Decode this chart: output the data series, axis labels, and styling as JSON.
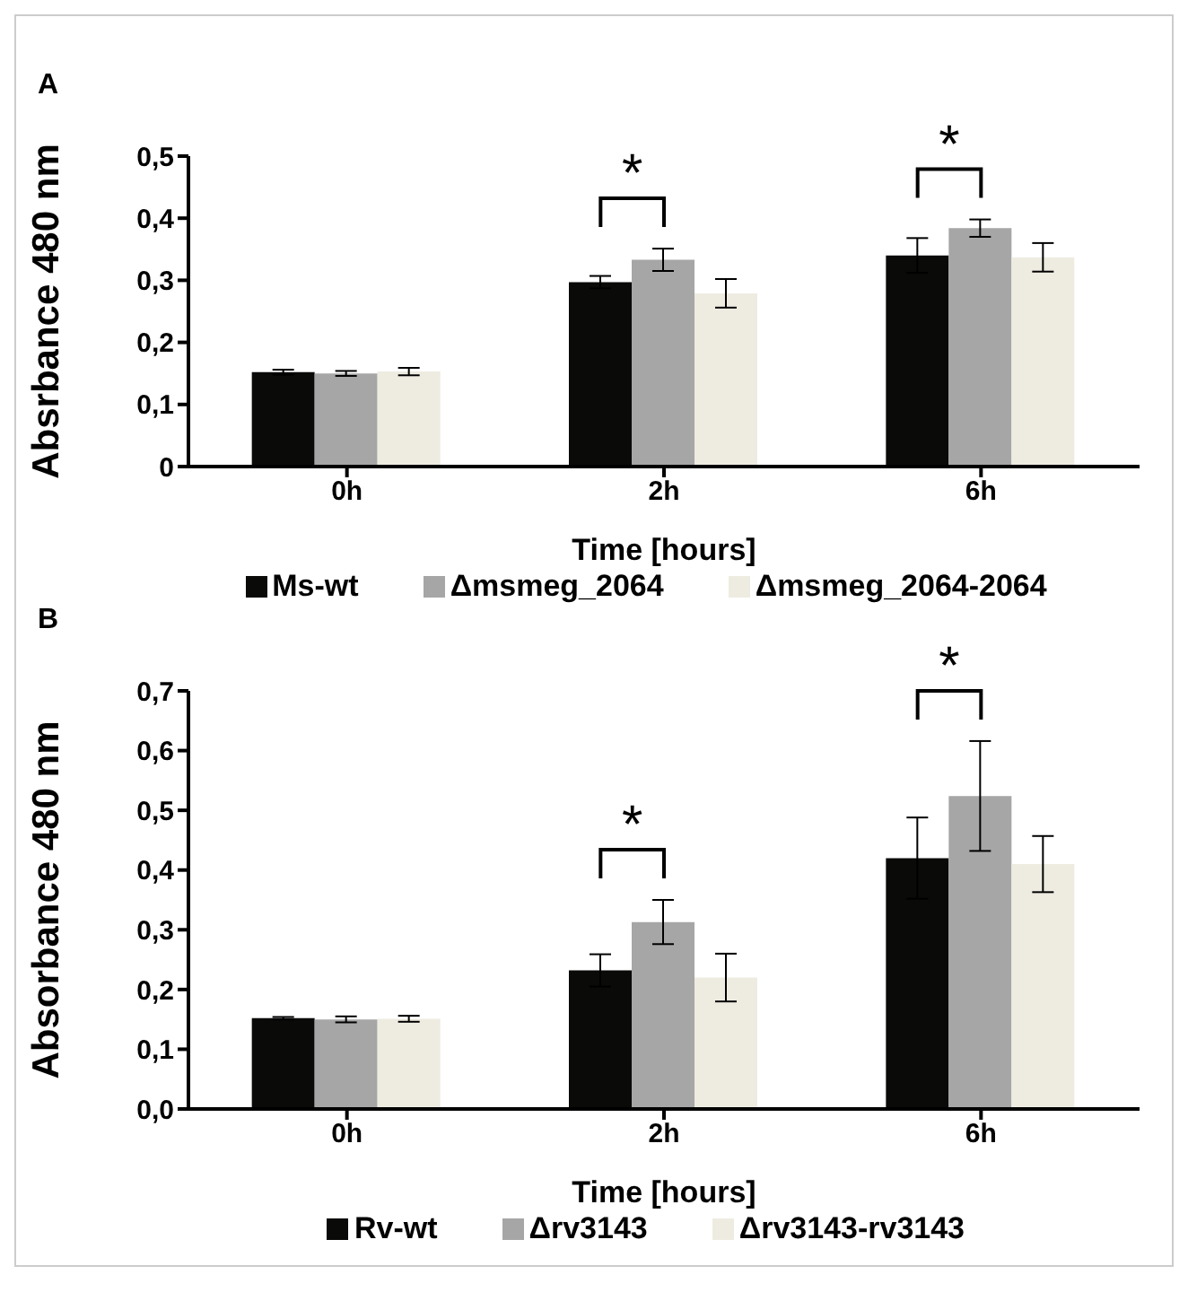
{
  "chart_data": [
    {
      "type": "bar",
      "title": "A",
      "xlabel": "Time [hours]",
      "ylabel": "Absrbance 480 nm",
      "categories": [
        "0h",
        "2h",
        "6h"
      ],
      "series": [
        {
          "name": "Ms-wt",
          "color": "#0a0a08",
          "values": [
            0.152,
            0.297,
            0.34
          ],
          "errors": [
            0.004,
            0.01,
            0.028
          ]
        },
        {
          "name": "Δmsmeg_2064",
          "color": "#a6a6a6",
          "values": [
            0.15,
            0.333,
            0.384
          ],
          "errors": [
            0.004,
            0.018,
            0.014
          ]
        },
        {
          "name": "Δmsmeg_2064-2064",
          "color": "#eeece1",
          "values": [
            0.153,
            0.279,
            0.337
          ],
          "errors": [
            0.006,
            0.023,
            0.023
          ]
        }
      ],
      "ylim": [
        0,
        0.5
      ],
      "yticks": [
        0,
        {
          "value": 0.1,
          "label": "0,1"
        },
        {
          "value": 0.2,
          "label": "0,2"
        },
        {
          "value": 0.3,
          "label": "0,3"
        },
        {
          "value": 0.4,
          "label": "0,4"
        },
        {
          "value": 0.5,
          "label": "0,5"
        }
      ],
      "annotations": [
        "*",
        "*"
      ],
      "grid": false,
      "legend": "bottom"
    },
    {
      "type": "bar",
      "title": "B",
      "xlabel": "Time [hours]",
      "ylabel": "Absorbance 480 nm",
      "categories": [
        "0h",
        "2h",
        "6h"
      ],
      "series": [
        {
          "name": "Rv-wt",
          "color": "#0a0a08",
          "values": [
            0.152,
            0.232,
            0.42
          ],
          "errors": [
            0.002,
            0.027,
            0.068
          ]
        },
        {
          "name": "Δrv3143",
          "color": "#a6a6a6",
          "values": [
            0.15,
            0.313,
            0.524
          ],
          "errors": [
            0.005,
            0.037,
            0.092
          ]
        },
        {
          "name": "Δrv3143-rv3143",
          "color": "#eeece1",
          "values": [
            0.151,
            0.22,
            0.41
          ],
          "errors": [
            0.005,
            0.04,
            0.047
          ]
        }
      ],
      "ylim": [
        0,
        0.7
      ],
      "yticks": [
        {
          "value": 0,
          "label": "0,0"
        },
        {
          "value": 0.1,
          "label": "0,1"
        },
        {
          "value": 0.2,
          "label": "0,2"
        },
        {
          "value": 0.3,
          "label": "0,3"
        },
        {
          "value": 0.4,
          "label": "0,4"
        },
        {
          "value": 0.5,
          "label": "0,5"
        },
        {
          "value": 0.6,
          "label": "0,6"
        },
        {
          "value": 0.7,
          "label": "0,7"
        }
      ],
      "annotations": [
        "*",
        "*"
      ],
      "grid": false,
      "legend": "bottom"
    }
  ]
}
